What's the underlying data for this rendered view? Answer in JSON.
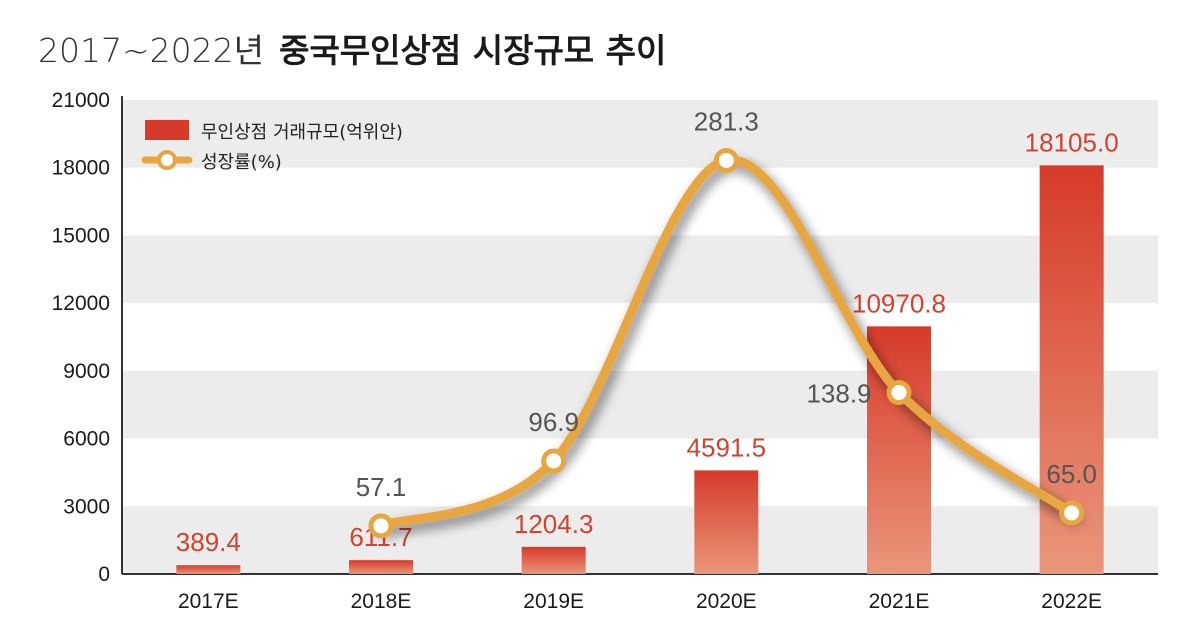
{
  "title": {
    "prefix": "2017~2022년",
    "main": "중국무인상점 시장규모 추이"
  },
  "legend": {
    "bar_label": "무인상점 거래규모(억위안)",
    "line_label": "성장률(%)"
  },
  "colors": {
    "bar_top": "#d63a2a",
    "bar_bottom": "#e9967a",
    "line": "#e8a640",
    "grid_band": "#ececec",
    "bar_label": "#d1432f",
    "growth_label": "#555555"
  },
  "chart_data": {
    "type": "bar",
    "title": "2017~2022년 중국무인상점 시장규모 추이",
    "categories": [
      "2017E",
      "2018E",
      "2019E",
      "2020E",
      "2021E",
      "2022E"
    ],
    "yticks": [
      "0",
      "3000",
      "6000",
      "9000",
      "12000",
      "15000",
      "18000",
      "21000"
    ],
    "ylim": [
      0,
      21000
    ],
    "series": [
      {
        "name": "무인상점 거래규모(억위안)",
        "type": "bar",
        "values": [
          389.4,
          611.7,
          1204.3,
          4591.5,
          10970.8,
          18105.0
        ],
        "labels": [
          "389.4",
          "611.7",
          "1204.3",
          "4591.5",
          "10970.8",
          "18105.0"
        ]
      },
      {
        "name": "성장률(%)",
        "type": "line",
        "values": [
          null,
          57.1,
          96.9,
          281.3,
          138.9,
          65.0
        ],
        "labels": [
          "",
          "57.1",
          "96.9",
          "281.3",
          "138.9",
          "65.0"
        ],
        "axis_range": [
          30,
          300
        ]
      }
    ],
    "legend_position": "top-left",
    "grid": "alternating horizontal bands"
  }
}
